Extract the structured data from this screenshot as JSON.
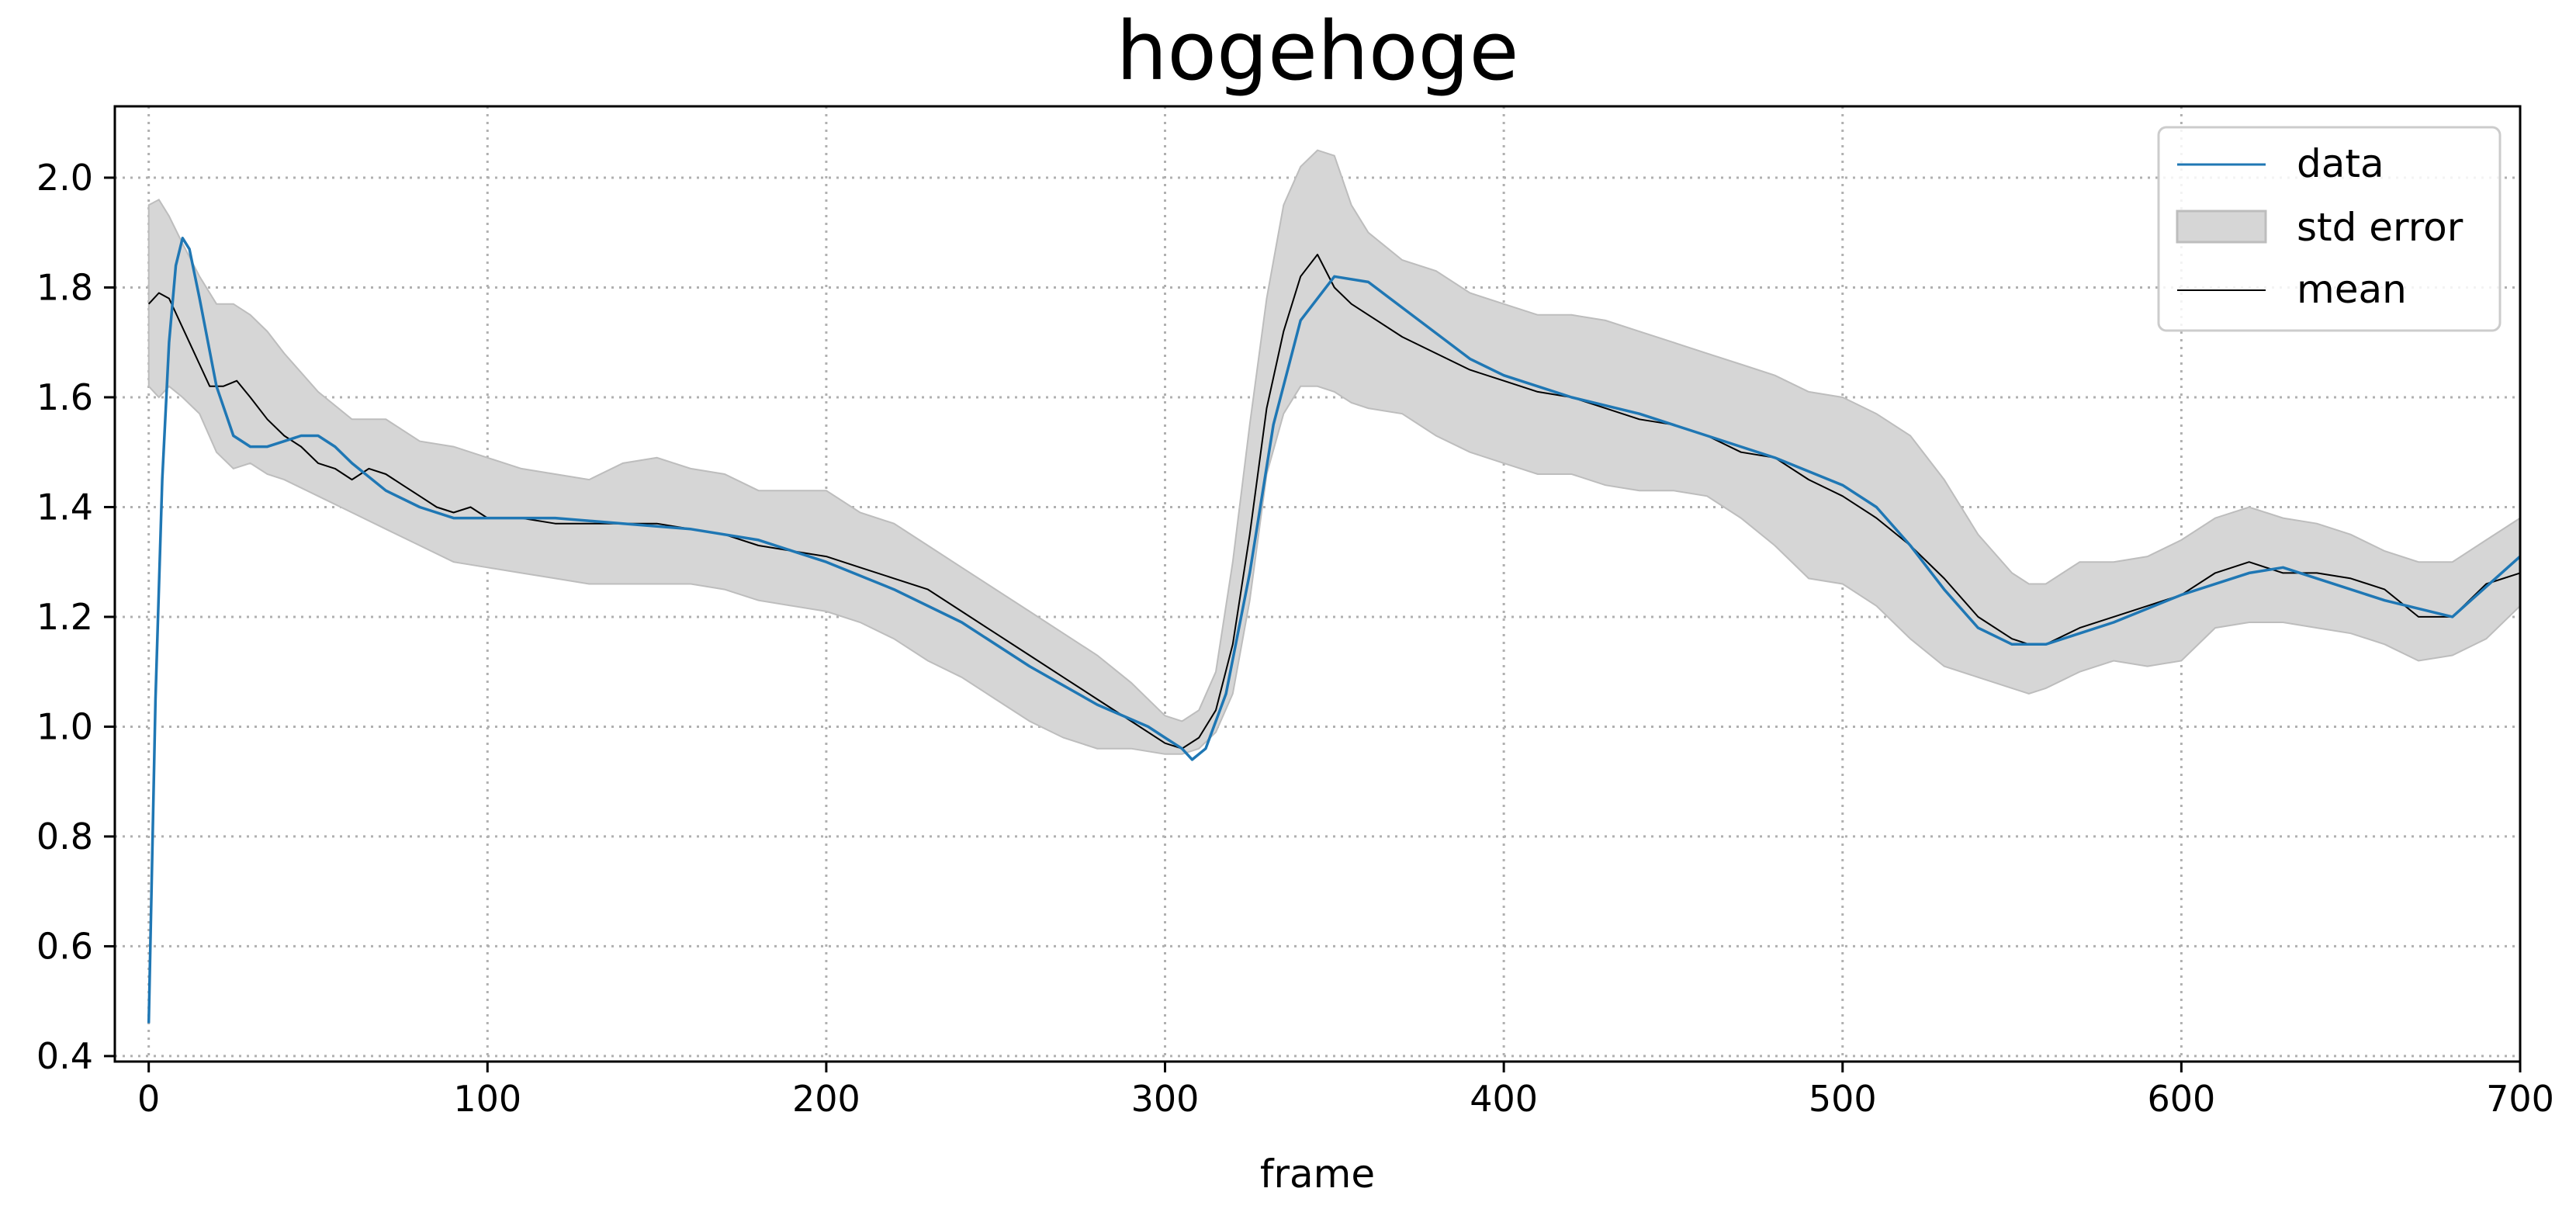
{
  "chart_data": {
    "type": "line",
    "title": "hogehoge",
    "xlabel": "frame",
    "ylabel": "",
    "xlim": [
      -10,
      700
    ],
    "ylim": [
      0.39,
      2.13
    ],
    "xticks": [
      0,
      100,
      200,
      300,
      400,
      500,
      600,
      700
    ],
    "xtick_labels": [
      "0",
      "100",
      "200",
      "300",
      "400",
      "500",
      "600",
      "700"
    ],
    "yticks": [
      0.4,
      0.6,
      0.8,
      1.0,
      1.2,
      1.4,
      1.6,
      1.8,
      2.0
    ],
    "ytick_labels": [
      "0.4",
      "0.6",
      "0.8",
      "1.0",
      "1.2",
      "1.4",
      "1.6",
      "1.8",
      "2.0"
    ],
    "grid": true,
    "legend_position": "upper right",
    "legend": [
      "data",
      "std error",
      "mean"
    ],
    "colors": {
      "data": "#1f77b4",
      "mean": "#000000",
      "band_fill": "#d6d6d6",
      "band_edge": "#bdbdbd",
      "grid": "#b0b0b0"
    },
    "series": [
      {
        "name": "data",
        "x": [
          0,
          2,
          4,
          6,
          8,
          10,
          12,
          15,
          20,
          25,
          30,
          35,
          40,
          45,
          50,
          55,
          60,
          70,
          80,
          90,
          100,
          120,
          140,
          160,
          180,
          200,
          220,
          240,
          260,
          280,
          295,
          300,
          305,
          308,
          312,
          318,
          325,
          332,
          340,
          350,
          360,
          375,
          390,
          400,
          420,
          440,
          460,
          480,
          500,
          510,
          520,
          530,
          540,
          550,
          560,
          580,
          600,
          620,
          630,
          640,
          660,
          680,
          700
        ],
        "y": [
          0.46,
          1.05,
          1.45,
          1.7,
          1.84,
          1.89,
          1.87,
          1.78,
          1.62,
          1.53,
          1.51,
          1.51,
          1.52,
          1.53,
          1.53,
          1.51,
          1.48,
          1.43,
          1.4,
          1.38,
          1.38,
          1.38,
          1.37,
          1.36,
          1.34,
          1.3,
          1.25,
          1.19,
          1.11,
          1.04,
          1.0,
          0.98,
          0.96,
          0.94,
          0.96,
          1.06,
          1.28,
          1.55,
          1.74,
          1.82,
          1.81,
          1.74,
          1.67,
          1.64,
          1.6,
          1.57,
          1.53,
          1.49,
          1.44,
          1.4,
          1.33,
          1.25,
          1.18,
          1.15,
          1.15,
          1.19,
          1.24,
          1.28,
          1.29,
          1.27,
          1.23,
          1.2,
          1.31
        ]
      },
      {
        "name": "mean",
        "x": [
          0,
          3,
          6,
          9,
          12,
          15,
          18,
          22,
          26,
          30,
          35,
          40,
          45,
          50,
          55,
          60,
          65,
          70,
          75,
          80,
          85,
          90,
          95,
          100,
          110,
          120,
          130,
          140,
          150,
          160,
          170,
          180,
          190,
          200,
          210,
          220,
          230,
          240,
          250,
          260,
          270,
          280,
          290,
          300,
          305,
          310,
          315,
          320,
          325,
          330,
          335,
          340,
          345,
          350,
          355,
          360,
          370,
          380,
          390,
          400,
          410,
          420,
          430,
          440,
          450,
          460,
          470,
          480,
          490,
          500,
          510,
          520,
          530,
          540,
          550,
          555,
          560,
          570,
          580,
          590,
          600,
          610,
          620,
          630,
          640,
          650,
          660,
          670,
          680,
          690,
          700
        ],
        "y": [
          1.77,
          1.79,
          1.78,
          1.74,
          1.7,
          1.66,
          1.62,
          1.62,
          1.63,
          1.6,
          1.56,
          1.53,
          1.51,
          1.48,
          1.47,
          1.45,
          1.47,
          1.46,
          1.44,
          1.42,
          1.4,
          1.39,
          1.4,
          1.38,
          1.38,
          1.37,
          1.37,
          1.37,
          1.37,
          1.36,
          1.35,
          1.33,
          1.32,
          1.31,
          1.29,
          1.27,
          1.25,
          1.21,
          1.17,
          1.13,
          1.09,
          1.05,
          1.01,
          0.97,
          0.96,
          0.98,
          1.03,
          1.15,
          1.35,
          1.58,
          1.72,
          1.82,
          1.86,
          1.8,
          1.77,
          1.75,
          1.71,
          1.68,
          1.65,
          1.63,
          1.61,
          1.6,
          1.58,
          1.56,
          1.55,
          1.53,
          1.5,
          1.49,
          1.45,
          1.42,
          1.38,
          1.33,
          1.27,
          1.2,
          1.16,
          1.15,
          1.15,
          1.18,
          1.2,
          1.22,
          1.24,
          1.28,
          1.3,
          1.28,
          1.28,
          1.27,
          1.25,
          1.2,
          1.2,
          1.26,
          1.28
        ]
      },
      {
        "name": "std error",
        "x": [
          0,
          3,
          6,
          10,
          15,
          20,
          25,
          30,
          35,
          40,
          50,
          60,
          70,
          80,
          90,
          100,
          110,
          120,
          130,
          140,
          150,
          160,
          170,
          180,
          190,
          200,
          210,
          220,
          230,
          240,
          250,
          260,
          270,
          280,
          290,
          300,
          305,
          310,
          315,
          320,
          325,
          330,
          335,
          340,
          345,
          350,
          355,
          360,
          370,
          380,
          390,
          400,
          410,
          420,
          430,
          440,
          450,
          460,
          470,
          480,
          490,
          500,
          510,
          520,
          530,
          540,
          550,
          555,
          560,
          570,
          580,
          590,
          600,
          610,
          620,
          630,
          640,
          650,
          660,
          670,
          680,
          690,
          700
        ],
        "upper": [
          1.95,
          1.96,
          1.93,
          1.88,
          1.82,
          1.77,
          1.77,
          1.75,
          1.72,
          1.68,
          1.61,
          1.56,
          1.56,
          1.52,
          1.51,
          1.49,
          1.47,
          1.46,
          1.45,
          1.48,
          1.49,
          1.47,
          1.46,
          1.43,
          1.43,
          1.43,
          1.39,
          1.37,
          1.33,
          1.29,
          1.25,
          1.21,
          1.17,
          1.13,
          1.08,
          1.02,
          1.01,
          1.03,
          1.1,
          1.3,
          1.55,
          1.78,
          1.95,
          2.02,
          2.05,
          2.04,
          1.95,
          1.9,
          1.85,
          1.83,
          1.79,
          1.77,
          1.75,
          1.75,
          1.74,
          1.72,
          1.7,
          1.68,
          1.66,
          1.64,
          1.61,
          1.6,
          1.57,
          1.53,
          1.45,
          1.35,
          1.28,
          1.26,
          1.26,
          1.3,
          1.3,
          1.31,
          1.34,
          1.38,
          1.4,
          1.38,
          1.37,
          1.35,
          1.32,
          1.3,
          1.3,
          1.34,
          1.38
        ],
        "lower": [
          1.62,
          1.6,
          1.62,
          1.6,
          1.57,
          1.5,
          1.47,
          1.48,
          1.46,
          1.45,
          1.42,
          1.39,
          1.36,
          1.33,
          1.3,
          1.29,
          1.28,
          1.27,
          1.26,
          1.26,
          1.26,
          1.26,
          1.25,
          1.23,
          1.22,
          1.21,
          1.19,
          1.16,
          1.12,
          1.09,
          1.05,
          1.01,
          0.98,
          0.96,
          0.96,
          0.95,
          0.95,
          0.96,
          0.99,
          1.06,
          1.23,
          1.46,
          1.57,
          1.62,
          1.62,
          1.61,
          1.59,
          1.58,
          1.57,
          1.53,
          1.5,
          1.48,
          1.46,
          1.46,
          1.44,
          1.43,
          1.43,
          1.42,
          1.38,
          1.33,
          1.27,
          1.26,
          1.22,
          1.16,
          1.11,
          1.09,
          1.07,
          1.06,
          1.07,
          1.1,
          1.12,
          1.11,
          1.12,
          1.18,
          1.19,
          1.19,
          1.18,
          1.17,
          1.15,
          1.12,
          1.13,
          1.16,
          1.22
        ]
      }
    ]
  }
}
